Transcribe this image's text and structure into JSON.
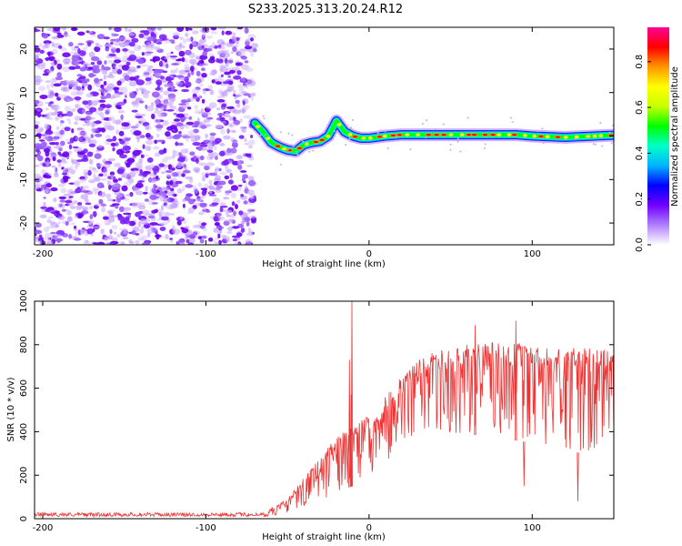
{
  "title": "S233.2025.313.20.24.R12",
  "chart_data": [
    {
      "type": "heatmap",
      "title": "S233.2025.313.20.24.R12",
      "xlabel": "Height of straight line (km)",
      "ylabel": "Frequency (Hz)",
      "xlim": [
        -205,
        150
      ],
      "ylim": [
        -25,
        25
      ],
      "xticks": [
        -200,
        -100,
        0,
        100
      ],
      "xtick_labels": [
        "-200",
        "-100",
        "0",
        "100"
      ],
      "yticks": [
        -20,
        -10,
        0,
        10,
        20
      ],
      "ytick_labels": [
        "-20",
        "-10",
        "0",
        "10",
        "20"
      ],
      "noise_region_x": [
        -205,
        -70
      ],
      "signal_track": {
        "x": [
          -70,
          -65,
          -60,
          -55,
          -50,
          -45,
          -40,
          -35,
          -30,
          -25,
          -20,
          -15,
          -10,
          -5,
          0,
          10,
          20,
          40,
          60,
          80,
          90,
          100,
          120,
          150
        ],
        "freq": [
          3,
          1,
          -1.5,
          -2.5,
          -3.2,
          -3.5,
          -2,
          -1.5,
          -1.2,
          0,
          3.5,
          1,
          0,
          -0.5,
          -0.5,
          0,
          0.3,
          0.3,
          0.3,
          0.3,
          0.3,
          0,
          -0.3,
          0.2
        ]
      },
      "colorbar": {
        "label": "Normalized spectral amplitude",
        "range": [
          0,
          0.95
        ],
        "ticks": [
          0.0,
          0.2,
          0.4,
          0.6,
          0.8
        ],
        "tick_labels": [
          "0.0",
          "0.2",
          "0.4",
          "0.6",
          "0.8"
        ],
        "colors": [
          "#ffffff",
          "#b07fff",
          "#7000ff",
          "#0000ff",
          "#00b4ff",
          "#00ffc8",
          "#00ff00",
          "#c8ff00",
          "#ffff00",
          "#ff9600",
          "#ff0000",
          "#ff0096"
        ]
      }
    },
    {
      "type": "line",
      "xlabel": "Height of straight line (km)",
      "ylabel": "SNR (10 * v/v)",
      "xlim": [
        -205,
        150
      ],
      "ylim": [
        0,
        1000
      ],
      "xticks": [
        -200,
        -100,
        0,
        100
      ],
      "xtick_labels": [
        "-200",
        "-100",
        "0",
        "100"
      ],
      "yticks": [
        0,
        200,
        400,
        600,
        800,
        1000
      ],
      "ytick_labels": [
        "0",
        "200",
        "400",
        "600",
        "800",
        "1000"
      ],
      "color": "#ee3333",
      "envelope": {
        "x": [
          -205,
          -62,
          -60,
          -50,
          -40,
          -30,
          -20,
          -10,
          0,
          10,
          20,
          30,
          40,
          50,
          60,
          70,
          80,
          90,
          100,
          110,
          120,
          130,
          140,
          150
        ],
        "upper": [
          25,
          25,
          55,
          90,
          190,
          280,
          380,
          420,
          480,
          560,
          660,
          730,
          770,
          790,
          800,
          810,
          810,
          810,
          800,
          790,
          790,
          790,
          780,
          780
        ],
        "lower": [
          5,
          5,
          10,
          20,
          40,
          80,
          120,
          150,
          200,
          250,
          300,
          350,
          380,
          390,
          390,
          380,
          370,
          360,
          350,
          340,
          320,
          300,
          330,
          360
        ]
      },
      "peaks": [
        {
          "x": -10.5,
          "y": 1000
        },
        {
          "x": -12,
          "y": 730
        },
        {
          "x": -11,
          "y": 570
        },
        {
          "x": 65,
          "y": 890
        },
        {
          "x": 90,
          "y": 910
        },
        {
          "x": 128,
          "y": 80
        },
        {
          "x": 95,
          "y": 150
        }
      ]
    }
  ]
}
